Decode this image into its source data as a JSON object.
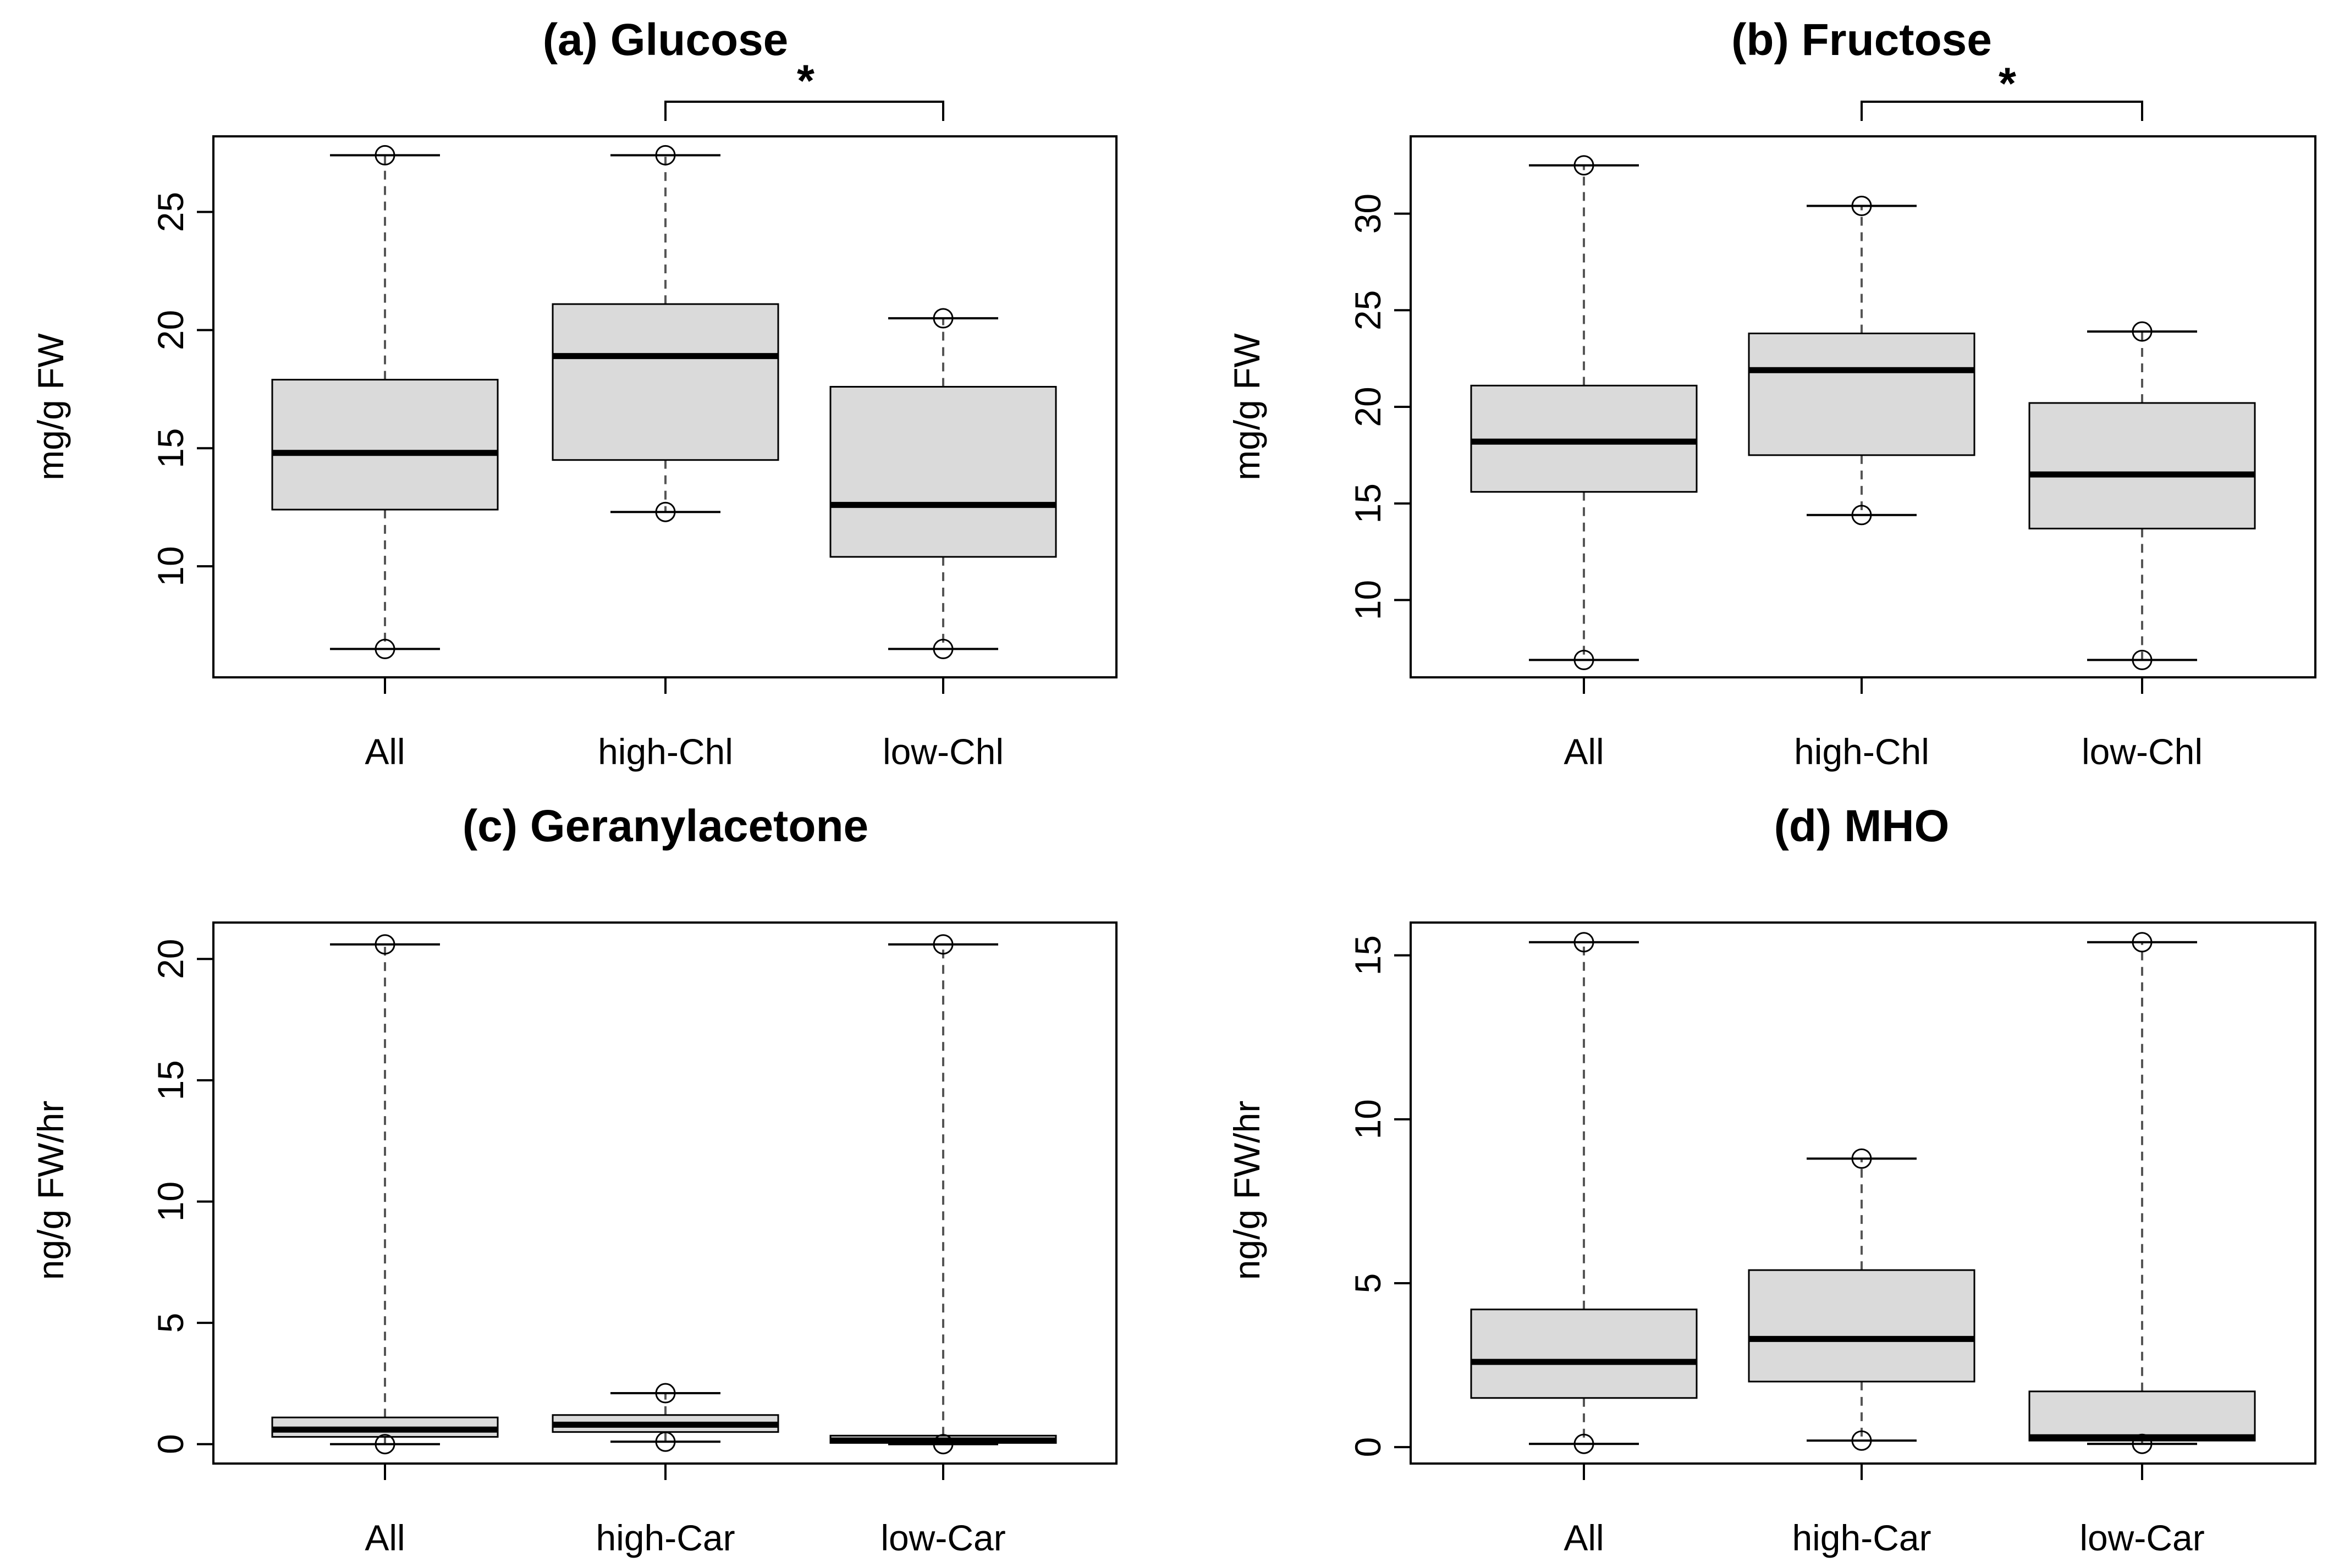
{
  "chart_data": [
    {
      "type": "boxplot",
      "title": "(a) Glucose",
      "ylabel": "mg/g FW",
      "categories": [
        "All",
        "high-Chl",
        "low-Chl"
      ],
      "ylim": [
        5.3,
        28.2
      ],
      "yticks": [
        10,
        15,
        20,
        25
      ],
      "boxes": [
        {
          "name": "All",
          "min": 6.5,
          "q1": 12.4,
          "median": 14.8,
          "q3": 17.9,
          "max": 27.4
        },
        {
          "name": "high-Chl",
          "min": 12.3,
          "q1": 14.5,
          "median": 18.9,
          "q3": 21.1,
          "max": 27.4
        },
        {
          "name": "low-Chl",
          "min": 6.5,
          "q1": 10.4,
          "median": 12.6,
          "q3": 17.6,
          "max": 20.5
        }
      ],
      "significance": {
        "from": "high-Chl",
        "to": "low-Chl",
        "label": "*"
      }
    },
    {
      "type": "boxplot",
      "title": "(b) Fructose",
      "ylabel": "mg/g FW",
      "categories": [
        "All",
        "high-Chl",
        "low-Chl"
      ],
      "ylim": [
        6.0,
        34.0
      ],
      "yticks": [
        10,
        15,
        20,
        25,
        30
      ],
      "boxes": [
        {
          "name": "All",
          "min": 6.9,
          "q1": 15.6,
          "median": 18.2,
          "q3": 21.1,
          "max": 32.5
        },
        {
          "name": "high-Chl",
          "min": 14.4,
          "q1": 17.5,
          "median": 21.9,
          "q3": 23.8,
          "max": 30.4
        },
        {
          "name": "low-Chl",
          "min": 6.9,
          "q1": 13.7,
          "median": 16.5,
          "q3": 20.2,
          "max": 23.9
        }
      ],
      "significance": {
        "from": "high-Chl",
        "to": "low-Chl",
        "label": "*"
      }
    },
    {
      "type": "boxplot",
      "title": "(c) Geranylacetone",
      "ylabel": "ng/g FW/hr",
      "categories": [
        "All",
        "high-Car",
        "low-Car"
      ],
      "ylim": [
        -0.8,
        21.5
      ],
      "yticks": [
        0,
        5,
        10,
        15,
        20
      ],
      "boxes": [
        {
          "name": "All",
          "min": 0.0,
          "q1": 0.3,
          "median": 0.6,
          "q3": 1.1,
          "max": 20.6
        },
        {
          "name": "high-Car",
          "min": 0.1,
          "q1": 0.5,
          "median": 0.8,
          "q3": 1.2,
          "max": 2.1
        },
        {
          "name": "low-Car",
          "min": 0.0,
          "q1": 0.05,
          "median": 0.15,
          "q3": 0.35,
          "max": 20.6
        }
      ],
      "significance": null
    },
    {
      "type": "boxplot",
      "title": "(d) MHO",
      "ylabel": "ng/g FW/hr",
      "categories": [
        "All",
        "high-Car",
        "low-Car"
      ],
      "ylim": [
        -0.5,
        16.0
      ],
      "yticks": [
        0,
        5,
        10,
        15
      ],
      "boxes": [
        {
          "name": "All",
          "min": 0.1,
          "q1": 1.5,
          "median": 2.6,
          "q3": 4.2,
          "max": 15.4
        },
        {
          "name": "high-Car",
          "min": 0.2,
          "q1": 2.0,
          "median": 3.3,
          "q3": 5.4,
          "max": 8.8
        },
        {
          "name": "low-Car",
          "min": 0.1,
          "q1": 0.2,
          "median": 0.3,
          "q3": 1.7,
          "max": 15.4
        }
      ],
      "significance": null
    }
  ]
}
